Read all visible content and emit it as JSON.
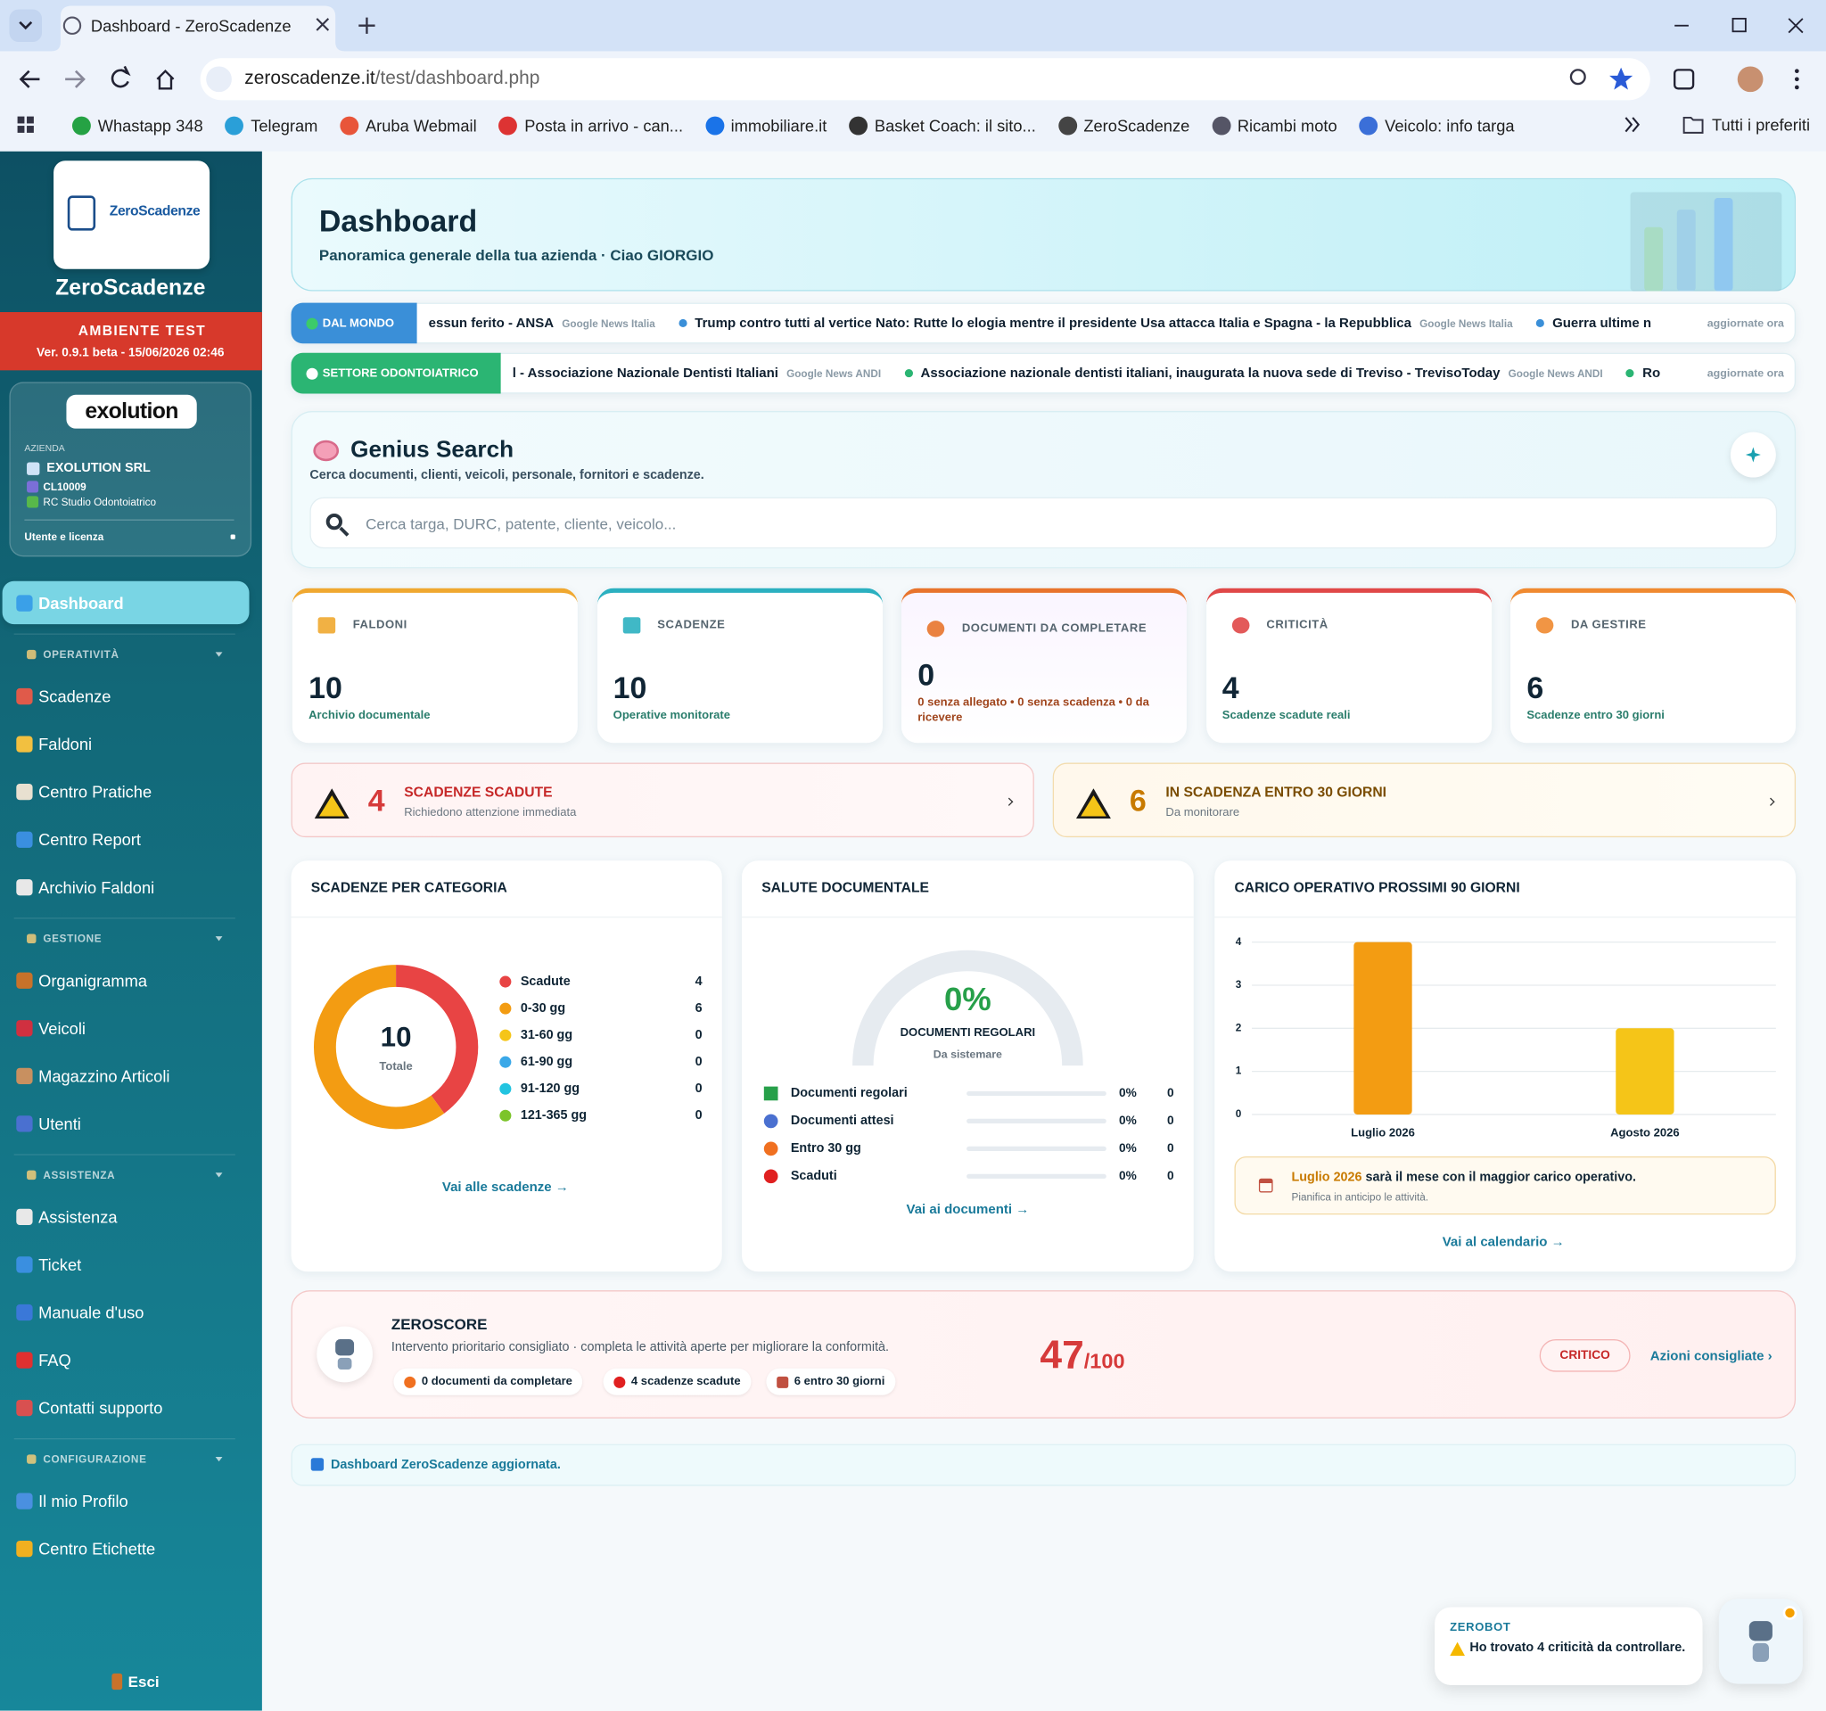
{
  "browser": {
    "tab_title": "Dashboard - ZeroScadenze",
    "url_host": "zeroscadenze.it",
    "url_path": "/test/dashboard.php",
    "bookmarks": [
      "Whastapp 348",
      "Telegram",
      "Aruba Webmail",
      "Posta in arrivo - can...",
      "immobiliare.it",
      "Basket Coach: il sito...",
      "ZeroScadenze",
      "Ricambi moto",
      "Veicolo: info targa"
    ],
    "all_bookmarks": "Tutti i preferiti"
  },
  "sidebar": {
    "logo_text": "ZeroScadenze",
    "brand": "ZeroScadenze",
    "env_label": "AMBIENTE TEST",
    "version": "Ver. 0.9.1 beta - 15/06/2026 02:46",
    "company_logo": "exolution",
    "company_caption": "AZIENDA",
    "company_name": "EXOLUTION SRL",
    "company_code": "CL10009",
    "company_sector": "RC Studio Odontoiatrico",
    "license_link": "Utente e licenza",
    "menu": [
      {
        "label": "Dashboard",
        "active": true
      },
      {
        "section": "OPERATIVITÀ"
      },
      {
        "label": "Scadenze"
      },
      {
        "label": "Faldoni"
      },
      {
        "label": "Centro Pratiche"
      },
      {
        "label": "Centro Report"
      },
      {
        "label": "Archivio Faldoni"
      },
      {
        "section": "GESTIONE"
      },
      {
        "label": "Organigramma"
      },
      {
        "label": "Veicoli"
      },
      {
        "label": "Magazzino Articoli"
      },
      {
        "label": "Utenti"
      },
      {
        "section": "ASSISTENZA"
      },
      {
        "label": "Assistenza"
      },
      {
        "label": "Ticket"
      },
      {
        "label": "Manuale d'uso"
      },
      {
        "label": "FAQ"
      },
      {
        "label": "Contatti supporto"
      },
      {
        "section": "CONFIGURAZIONE"
      },
      {
        "label": "Il mio Profilo"
      },
      {
        "label": "Centro Etichette"
      }
    ],
    "logout": "Esci"
  },
  "header": {
    "title": "Dashboard",
    "subtitle": "Panoramica generale della tua azienda · Ciao GIORGIO"
  },
  "tickers": [
    {
      "label": "DAL MONDO",
      "color": "#3a8fd8",
      "items": [
        {
          "text": "essun ferito - ANSA",
          "source": "Google News Italia"
        },
        {
          "text": "Trump contro tutti al vertice Nato: Rutte lo elogia mentre il presidente Usa attacca Italia e Spagna - la Repubblica",
          "source": "Google News Italia"
        },
        {
          "text": "Guerra ultime n"
        }
      ],
      "status": "aggiornate ora"
    },
    {
      "label": "SETTORE ODONTOIATRICO",
      "color": "#2bb573",
      "items": [
        {
          "text": "l - Associazione Nazionale Dentisti Italiani",
          "source": "Google News ANDI"
        },
        {
          "text": "Associazione nazionale dentisti italiani, inaugurata la nuova sede di Treviso - TrevisoToday",
          "source": "Google News ANDI"
        },
        {
          "text": "Ro"
        }
      ],
      "status": "aggiornate ora"
    }
  ],
  "search": {
    "title": "Genius Search",
    "subtitle": "Cerca documenti, clienti, veicoli, personale, fornitori e scadenze.",
    "placeholder": "Cerca targa, DURC, patente, cliente, veicolo..."
  },
  "stats": [
    {
      "label": "FALDONI",
      "value": 10,
      "caption": "Archivio documentale",
      "color": "#f0a830",
      "caption_color": "#2a7d6c"
    },
    {
      "label": "SCADENZE",
      "value": 10,
      "caption": "Operative monitorate",
      "color": "#2bb0c0",
      "caption_color": "#2a7d6c"
    },
    {
      "label": "DOCUMENTI DA COMPLETARE",
      "value": 0,
      "caption": "0 senza allegato • 0 senza scadenza • 0 da ricevere",
      "color": "#e8742c",
      "caption_color": "#a0451d"
    },
    {
      "label": "CRITICITÀ",
      "value": 4,
      "caption": "Scadenze scadute reali",
      "color": "#e04848",
      "caption_color": "#2a7d6c"
    },
    {
      "label": "DA GESTIRE",
      "value": 6,
      "caption": "Scadenze entro 30 giorni",
      "color": "#f08a30",
      "caption_color": "#2a7d6c"
    }
  ],
  "alerts": [
    {
      "value": 4,
      "title": "SCADENZE SCADUTE",
      "subtitle": "Richiedono attenzione immediata"
    },
    {
      "value": 6,
      "title": "IN SCADENZA ENTRO 30 GIORNI",
      "subtitle": "Da monitorare"
    }
  ],
  "category_panel": {
    "title": "SCADENZE PER CATEGORIA",
    "chart": {
      "type": "donut",
      "total": 10,
      "total_label": "Totale",
      "categories": [
        "Scadute",
        "0-30 gg",
        "31-60 gg",
        "61-90 gg",
        "91-120 gg",
        "121-365 gg"
      ],
      "values": [
        4,
        6,
        0,
        0,
        0,
        0
      ],
      "colors": [
        "#e84444",
        "#f39c12",
        "#f5c518",
        "#3aa8e8",
        "#22c4e0",
        "#7cc42a"
      ]
    },
    "link": "Vai alle scadenze →"
  },
  "health_panel": {
    "title": "SALUTE DOCUMENTALE",
    "gauge": {
      "value": 0,
      "value_label": "0%",
      "title": "DOCUMENTI REGOLARI",
      "subtitle": "Da sistemare"
    },
    "rows": [
      {
        "label": "Documenti regolari",
        "percent": 0,
        "percent_label": "0%",
        "count": 0
      },
      {
        "label": "Documenti attesi",
        "percent": 0,
        "percent_label": "0%",
        "count": 0
      },
      {
        "label": "Entro 30 gg",
        "percent": 0,
        "percent_label": "0%",
        "count": 0
      },
      {
        "label": "Scaduti",
        "percent": 0,
        "percent_label": "0%",
        "count": 0
      }
    ],
    "link": "Vai ai documenti →"
  },
  "load_panel": {
    "title": "CARICO OPERATIVO PROSSIMI 90 GIORNI",
    "chart": {
      "type": "bar",
      "categories": [
        "Luglio 2026",
        "Agosto 2026"
      ],
      "values": [
        4,
        2
      ],
      "colors": [
        "#f39c12",
        "#f5c518"
      ],
      "ylim": [
        0,
        4
      ],
      "yticks": [
        0,
        1,
        2,
        3,
        4
      ],
      "grid": true
    },
    "note_highlight": "Luglio 2026",
    "note_text": "sarà il mese con il maggior carico operativo.",
    "note_sub": "Pianifica in anticipo le attività.",
    "link": "Vai al calendario →"
  },
  "zeroscore": {
    "title": "ZEROSCORE",
    "subtitle": "Intervento prioritario consigliato · completa le attività aperte per migliorare la conformità.",
    "chips": [
      "0 documenti da completare",
      "4 scadenze scadute",
      "6 entro 30 giorni"
    ],
    "score": 47,
    "max": {
      "value": 100,
      "label": "/100"
    },
    "status": "CRITICO",
    "action": "Azioni consigliate ›"
  },
  "footer": {
    "message": "Dashboard ZeroScadenze aggiornata."
  },
  "zerobot": {
    "title": "ZEROBOT",
    "message": "Ho trovato 4 criticità da controllare."
  }
}
